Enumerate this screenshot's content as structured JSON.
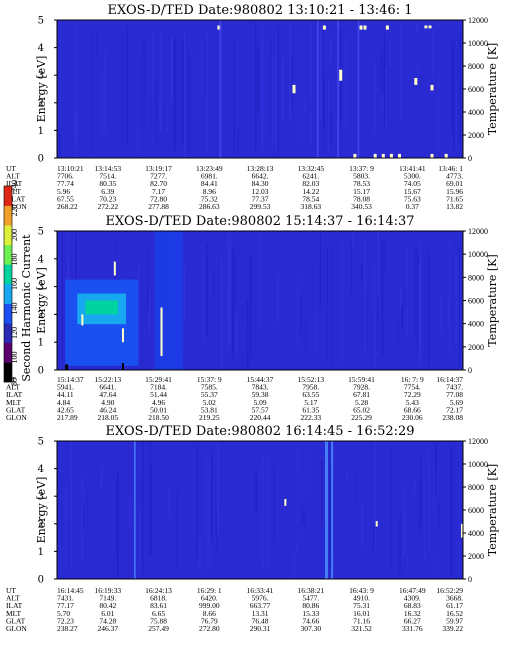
{
  "chart_data": [
    {
      "type": "heatmap",
      "title": "EXOS-D/TED  Date:980802  13:10:21 - 13:46: 1",
      "ylabel": "Energy [eV]",
      "y2label": "Temperature [K]",
      "ylim": [
        0,
        5
      ],
      "y_ticks": [
        "0",
        "1",
        "2",
        "3",
        "4",
        "5"
      ],
      "y2lim": [
        0,
        12000
      ],
      "y2_ticks": [
        "0",
        "2000",
        "4000",
        "6000",
        "8000",
        "10000",
        "12000"
      ],
      "orbit_rows": [
        {
          "label": "UT",
          "values": [
            "13:10:21",
            "13:14:53",
            "13:19:17",
            "13:23:49",
            "13:28:13",
            "13:32:45",
            "13:37: 9",
            "13:41:41",
            "13:46: 1"
          ]
        },
        {
          "label": "ALT",
          "values": [
            "7706.",
            "7514.",
            "7277.",
            "6981.",
            "6642.",
            "6241.",
            "5803.",
            "5300.",
            "4773."
          ]
        },
        {
          "label": "ILAT",
          "values": [
            "77.74",
            "80.35",
            "82.70",
            "84.41",
            "84.30",
            "82.03",
            "78.53",
            "74.05",
            "69.01"
          ]
        },
        {
          "label": "MLT",
          "values": [
            "5.96",
            "6.39",
            "7.17",
            "8.96",
            "12.03",
            "14.22",
            "15.17",
            "15.67",
            "15.96"
          ]
        },
        {
          "label": "GLAT",
          "values": [
            "67.55",
            "70.23",
            "72.80",
            "75.32",
            "77.37",
            "78.54",
            "78.08",
            "75.63",
            "71.65"
          ]
        },
        {
          "label": "GLON",
          "values": [
            "268.22",
            "272.22",
            "277.88",
            "286.63",
            "299.53",
            "318.63",
            "340.53",
            "0.37",
            "13.82"
          ]
        }
      ]
    },
    {
      "type": "heatmap",
      "title": "EXOS-D/TED  Date:980802  15:14:37 - 16:14:37",
      "ylabel": "Energy [eV]",
      "y2label": "Temperature [K]",
      "ylim": [
        0,
        5
      ],
      "y_ticks": [
        "0",
        "1",
        "2",
        "3",
        "4",
        "5"
      ],
      "y2lim": [
        0,
        12000
      ],
      "y2_ticks": [
        "0",
        "2000",
        "4000",
        "6000",
        "8000",
        "10000",
        "12000"
      ],
      "colorbar": {
        "label": "Second Harmonic Current",
        "range": [
          80,
          240
        ],
        "ticks": [
          "80",
          "100",
          "120",
          "140",
          "160",
          "180",
          "200",
          "220",
          "240"
        ],
        "colors": [
          "#000000",
          "#5a006e",
          "#2a2ab4",
          "#1a50f0",
          "#18a8f0",
          "#00d2a0",
          "#6ef050",
          "#dcf03c",
          "#f0a028",
          "#dc2814"
        ]
      },
      "orbit_rows": [
        {
          "label": "UT",
          "values": [
            "15:14:37",
            "15:22:13",
            "15:29:41",
            "15:37: 9",
            "15:44:37",
            "15:52:13",
            "15:59:41",
            "16: 7: 9",
            "16:14:37"
          ]
        },
        {
          "label": "ALT",
          "values": [
            "5941.",
            "6641.",
            "7184.",
            "7585.",
            "7843.",
            "7958.",
            "7928.",
            "7754.",
            "7437."
          ]
        },
        {
          "label": "ILAT",
          "values": [
            "44.11",
            "47.64",
            "51.44",
            "55.37",
            "59.38",
            "63.55",
            "67.81",
            "72.29",
            "77.08"
          ]
        },
        {
          "label": "MLT",
          "values": [
            "4.84",
            "4.90",
            "4.96",
            "5.02",
            "5.09",
            "5.17",
            "5.28",
            "5.43",
            "5.69"
          ]
        },
        {
          "label": "GLAT",
          "values": [
            "42.65",
            "46.24",
            "50.01",
            "53.81",
            "57.57",
            "61.35",
            "65.02",
            "68.66",
            "72.17"
          ]
        },
        {
          "label": "GLON",
          "values": [
            "217.89",
            "218.05",
            "218.50",
            "219.25",
            "220.44",
            "222.33",
            "225.29",
            "230.06",
            "238.08"
          ]
        }
      ]
    },
    {
      "type": "heatmap",
      "title": "EXOS-D/TED  Date:980802  16:14:45 - 16:52:29",
      "ylabel": "Energy [eV]",
      "y2label": "Temperature [K]",
      "ylim": [
        0,
        5
      ],
      "y_ticks": [
        "0",
        "1",
        "2",
        "3",
        "4",
        "5"
      ],
      "y2lim": [
        0,
        12000
      ],
      "y2_ticks": [
        "0",
        "2000",
        "4000",
        "6000",
        "8000",
        "10000",
        "12000"
      ],
      "orbit_rows": [
        {
          "label": "UT",
          "values": [
            "16:14:45",
            "16:19:33",
            "16:24:13",
            "16:29: 1",
            "16:33:41",
            "16:38:21",
            "16:43: 9",
            "16:47:49",
            "16:52:29"
          ]
        },
        {
          "label": "ALT",
          "values": [
            "7431.",
            "7149.",
            "6818.",
            "6420.",
            "5976.",
            "5477.",
            "4910.",
            "4309.",
            "3668."
          ]
        },
        {
          "label": "ILAT",
          "values": [
            "77.17",
            "80.42",
            "83.61",
            "999.00",
            "663.77",
            "80.86",
            "75.31",
            "68.83",
            "61.17"
          ]
        },
        {
          "label": "MLT",
          "values": [
            "5.70",
            "6.01",
            "6.65",
            "8.66",
            "13.31",
            "15.33",
            "16.01",
            "16.32",
            "16.52"
          ]
        },
        {
          "label": "GLAT",
          "values": [
            "72.23",
            "74.28",
            "75.88",
            "76.79",
            "76.48",
            "74.66",
            "71.16",
            "66.27",
            "59.97"
          ]
        },
        {
          "label": "GLON",
          "values": [
            "238.27",
            "246.37",
            "257.49",
            "272.80",
            "290.31",
            "307.30",
            "321.52",
            "331.76",
            "339.22"
          ]
        }
      ]
    }
  ]
}
